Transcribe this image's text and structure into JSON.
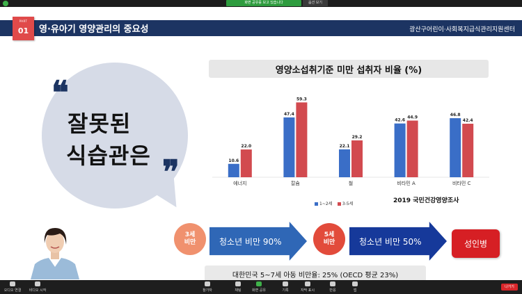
{
  "zoom": {
    "share_banner": "화면 공유를 보고 있습니다",
    "view_options": "옵션 보기",
    "toolbar": [
      {
        "label": "오디오 연결",
        "icon": "headphone-icon"
      },
      {
        "label": "비디오 시작",
        "icon": "video-off-icon"
      },
      {
        "label": "참가자",
        "icon": "participants-icon"
      },
      {
        "label": "채팅",
        "icon": "chat-icon"
      },
      {
        "label": "화면 공유",
        "icon": "share-screen-icon"
      },
      {
        "label": "기록",
        "icon": "record-icon"
      },
      {
        "label": "자막 표시",
        "icon": "cc-icon"
      },
      {
        "label": "반응",
        "icon": "reaction-icon"
      },
      {
        "label": "앱",
        "icon": "apps-icon"
      }
    ],
    "leave_label": "나가기"
  },
  "slide": {
    "part_label": "PART",
    "part_number": "01",
    "title": "영·유아기 영양관리의 중요성",
    "org": "광산구어린이·사회복지급식관리지원센터",
    "bubble_lines": [
      "잘못된",
      "식습관은"
    ],
    "quote_open": "❝",
    "quote_close": "❞",
    "chart_title": "영양소섭취기준 미만 섭취자 비율 (%)",
    "source": "2019 국민건강영양조사",
    "flow": {
      "badge1": [
        "3세",
        "비만"
      ],
      "arrow1": "청소년 비만 90%",
      "badge2": [
        "5세",
        "비만"
      ],
      "arrow2": "청소년 비만 50%",
      "result": "성인병"
    },
    "note": "대한민국 5~7세 아동 비만율: 25% (OECD 평균 23%)"
  },
  "colors": {
    "navy": "#1c3462",
    "series1": "#3a6ec7",
    "series2": "#d24a4f",
    "red": "#e04a4a",
    "arrow_blue": "#2f67b6",
    "arrow_navy": "#16399a",
    "badge_orange": "#f0916e",
    "badge_red": "#e24b3b"
  },
  "chart_data": {
    "type": "bar",
    "categories": [
      "에너지",
      "칼슘",
      "철",
      "비타민 A",
      "비타민 C"
    ],
    "series": [
      {
        "name": "1~2세",
        "values": [
          10.6,
          47.4,
          22.1,
          42.6,
          46.8
        ]
      },
      {
        "name": "3-5세",
        "values": [
          22.0,
          59.3,
          29.2,
          44.9,
          42.4
        ]
      }
    ],
    "ylim": [
      0,
      65
    ],
    "grid": false,
    "legend": "bottom"
  }
}
